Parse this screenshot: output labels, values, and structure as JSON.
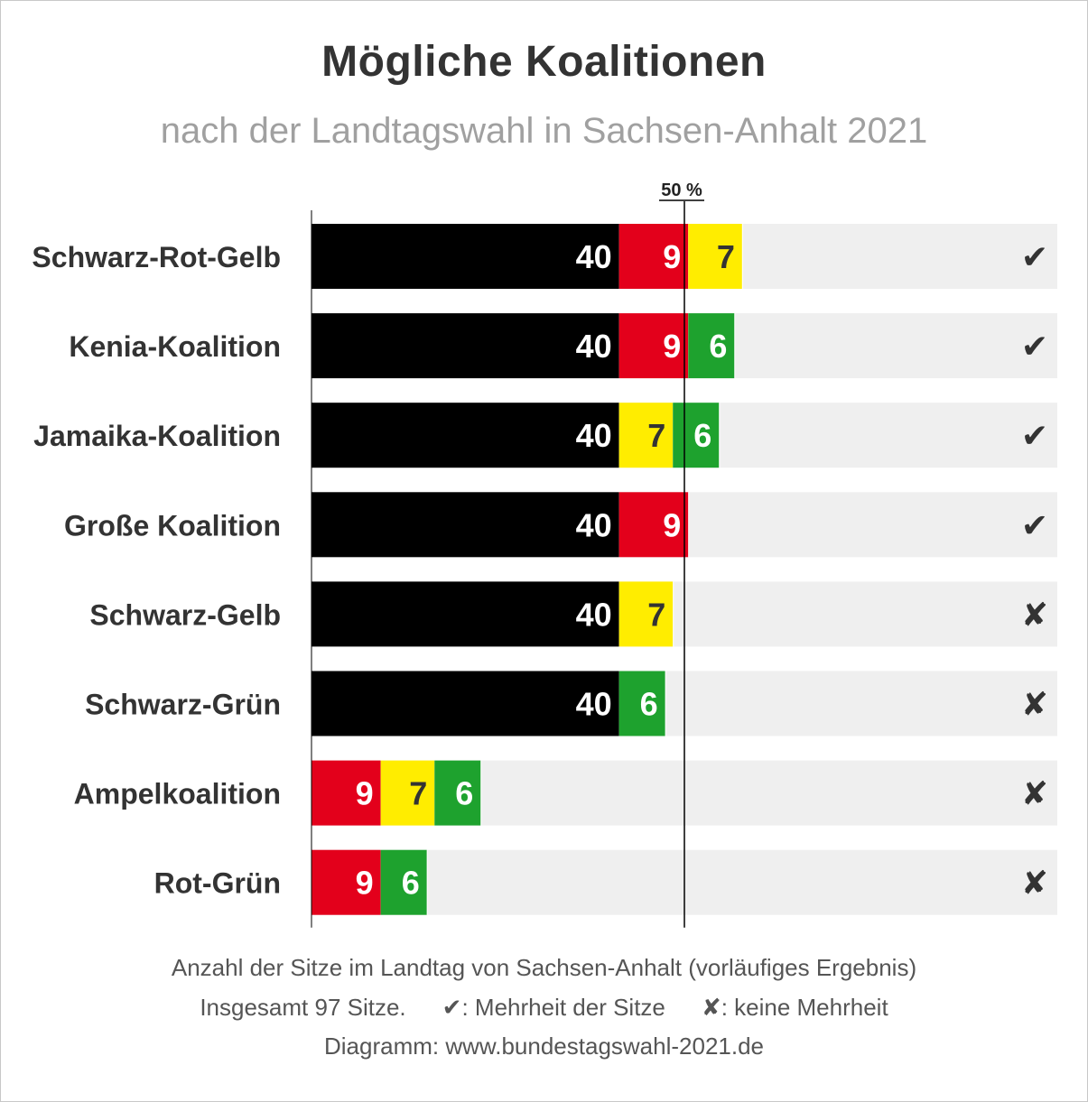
{
  "title": "Mögliche Koalitionen",
  "subtitle": "nach der Landtagswahl in Sachsen-Anhalt 2021",
  "majority_label": "50 %",
  "colors": {
    "black": "#000000",
    "red": "#e3001b",
    "yellow": "#ffed00",
    "green": "#1ea22e",
    "track": "#efefef"
  },
  "chart_data": {
    "type": "bar",
    "stacked": true,
    "orientation": "horizontal",
    "total": 97,
    "majority_line": "50 %",
    "categories": [
      "Schwarz-Rot-Gelb",
      "Kenia-Koalition",
      "Jamaika-Koalition",
      "Große Koalition",
      "Schwarz-Gelb",
      "Schwarz-Grün",
      "Ampelkoalition",
      "Rot-Grün"
    ],
    "rows": [
      {
        "label": "Schwarz-Rot-Gelb",
        "segments": [
          {
            "color": "black",
            "value": 40
          },
          {
            "color": "red",
            "value": 9
          },
          {
            "color": "yellow",
            "value": 7
          }
        ],
        "majority": "✔"
      },
      {
        "label": "Kenia-Koalition",
        "segments": [
          {
            "color": "black",
            "value": 40
          },
          {
            "color": "red",
            "value": 9
          },
          {
            "color": "green",
            "value": 6
          }
        ],
        "majority": "✔"
      },
      {
        "label": "Jamaika-Koalition",
        "segments": [
          {
            "color": "black",
            "value": 40
          },
          {
            "color": "yellow",
            "value": 7
          },
          {
            "color": "green",
            "value": 6
          }
        ],
        "majority": "✔"
      },
      {
        "label": "Große Koalition",
        "segments": [
          {
            "color": "black",
            "value": 40
          },
          {
            "color": "red",
            "value": 9
          }
        ],
        "majority": "✔"
      },
      {
        "label": "Schwarz-Gelb",
        "segments": [
          {
            "color": "black",
            "value": 40
          },
          {
            "color": "yellow",
            "value": 7
          }
        ],
        "majority": "✘"
      },
      {
        "label": "Schwarz-Grün",
        "segments": [
          {
            "color": "black",
            "value": 40
          },
          {
            "color": "green",
            "value": 6
          }
        ],
        "majority": "✘"
      },
      {
        "label": "Ampelkoalition",
        "segments": [
          {
            "color": "red",
            "value": 9
          },
          {
            "color": "yellow",
            "value": 7
          },
          {
            "color": "green",
            "value": 6
          }
        ],
        "majority": "✘"
      },
      {
        "label": "Rot-Grün",
        "segments": [
          {
            "color": "red",
            "value": 9
          },
          {
            "color": "green",
            "value": 6
          }
        ],
        "majority": "✘"
      }
    ]
  },
  "footer": {
    "line1": "Anzahl der Sitze im Landtag von Sachsen-Anhalt (vorläufiges Ergebnis)",
    "total_text": "Insgesamt 97 Sitze.",
    "legend_check_symbol": "✔",
    "legend_check_text": "Mehrheit der Sitze",
    "legend_cross_symbol": "✘",
    "legend_cross_text": "keine Mehrheit",
    "source": "Diagramm: www.bundestagswahl-2021.de"
  }
}
